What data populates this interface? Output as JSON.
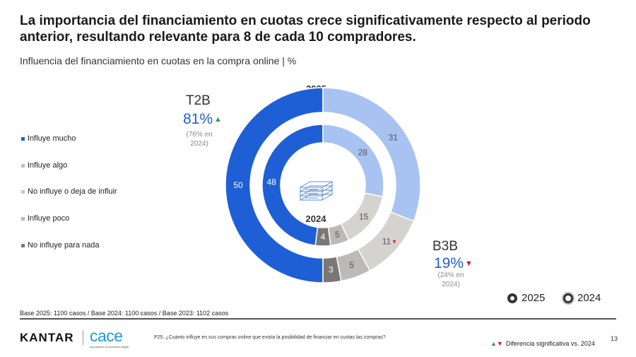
{
  "title": "La importancia del financiamiento en cuotas crece significativamente respecto al periodo anterior, resultando relevante para 8 de cada 10 compradores.",
  "subtitle": "Influencia del financiamiento en cuotas en la compra online | %",
  "colors": {
    "influye_mucho": "#1f5fd6",
    "influye_algo": "#a8c3f2",
    "no_influye": "#d4d3cf",
    "influye_poco": "#bcbab6",
    "nada": "#7a7875",
    "kpi_blue": "#1f5fd6",
    "up": "#2ea043",
    "down": "#d11f1f"
  },
  "chart_data": {
    "type": "pie",
    "categories": [
      "Influye mucho",
      "Influye algo",
      "No influye o deja de influir",
      "Influye poco",
      "No influye para nada"
    ],
    "series": [
      {
        "name": "2025",
        "values": [
          50,
          31,
          11,
          5,
          3
        ]
      },
      {
        "name": "2024",
        "values": [
          48,
          28,
          15,
          5,
          4
        ]
      }
    ],
    "labels": {
      "2025": [
        "50",
        "31",
        "11",
        "5",
        "3"
      ],
      "2024": [
        "48",
        "28",
        "15",
        "5",
        "4"
      ]
    },
    "significance": {
      "2025": [
        null,
        null,
        "down",
        null,
        null
      ]
    },
    "center_icon": "money-stack-icon",
    "legend_position": "left"
  },
  "legend": [
    "Influye mucho",
    "Influye algo",
    "No influye o deja de influir",
    "Influye poco",
    "No influye para nada"
  ],
  "year_outer": "2025",
  "year_inner": "2024",
  "t2b": {
    "label": "T2B",
    "value": "81%",
    "prev_line1": "(76% en",
    "prev_line2": "2024)"
  },
  "b3b": {
    "label": "B3B",
    "value": "19%",
    "prev_line1": "(24% en",
    "prev_line2": "2024)"
  },
  "ring_legend": {
    "outer": "2025",
    "inner": "2024"
  },
  "base_note": "Base 2025: 1100 casos / Base 2024: 1100 casos / Base 2023: 1102 casos",
  "footer": {
    "kantar": "KANTAR",
    "cace": "cace",
    "cace_tagline": "Impulsando la economía digital",
    "question": "P25. ¿Cuánto influye en sus compras online que exista la posibilidad de financiar en cuotas las compras?",
    "sig_note": "Diferencia significativa vs. 2024",
    "page": "13"
  }
}
